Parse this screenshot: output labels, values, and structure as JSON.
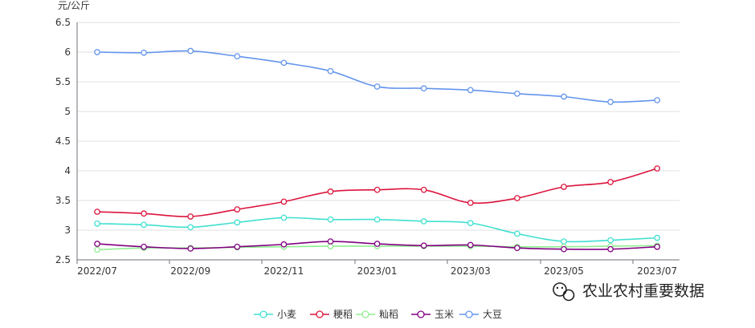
{
  "chart_data": {
    "type": "line",
    "ylabel": "元/公斤",
    "ylim": [
      2.5,
      6.5
    ],
    "y_ticks": [
      "2.5",
      "3",
      "3.5",
      "4",
      "4.5",
      "5",
      "5.5",
      "6",
      "6.5"
    ],
    "x_tick_labels": [
      "2022/07",
      "2022/09",
      "2022/11",
      "2023/01",
      "2023/03",
      "2023/05",
      "2023/07"
    ],
    "categories": [
      "2022/07",
      "2022/08",
      "2022/09",
      "2022/10",
      "2022/11",
      "2022/12",
      "2023/01",
      "2023/02",
      "2023/03",
      "2023/04",
      "2023/05",
      "2023/06",
      "2023/07"
    ],
    "grid": true,
    "legend_position": "bottom-center",
    "series": [
      {
        "name": "小麦",
        "color": "#40e0d0",
        "values": [
          3.11,
          3.09,
          3.05,
          3.13,
          3.21,
          3.18,
          3.18,
          3.15,
          3.12,
          2.94,
          2.81,
          2.83,
          2.87
        ]
      },
      {
        "name": "粳稻",
        "color": "#dc143c",
        "values": [
          3.31,
          3.28,
          3.23,
          3.35,
          3.48,
          3.65,
          3.68,
          3.68,
          3.46,
          3.54,
          3.73,
          3.81,
          4.04
        ]
      },
      {
        "name": "籼稻",
        "color": "#90ee90",
        "values": [
          2.67,
          2.7,
          2.7,
          2.71,
          2.72,
          2.73,
          2.73,
          2.73,
          2.73,
          2.72,
          2.72,
          2.73,
          2.74
        ]
      },
      {
        "name": "玉米",
        "color": "#800080",
        "values": [
          2.77,
          2.72,
          2.69,
          2.72,
          2.76,
          2.81,
          2.77,
          2.74,
          2.75,
          2.7,
          2.68,
          2.68,
          2.72
        ]
      },
      {
        "name": "大豆",
        "color": "#6495ed",
        "values": [
          6.0,
          5.99,
          6.02,
          5.93,
          5.82,
          5.68,
          5.42,
          5.39,
          5.36,
          5.3,
          5.25,
          5.16,
          5.19
        ]
      }
    ]
  },
  "watermark": {
    "text": "农业农村重要数据",
    "icon": "wechat-icon"
  }
}
